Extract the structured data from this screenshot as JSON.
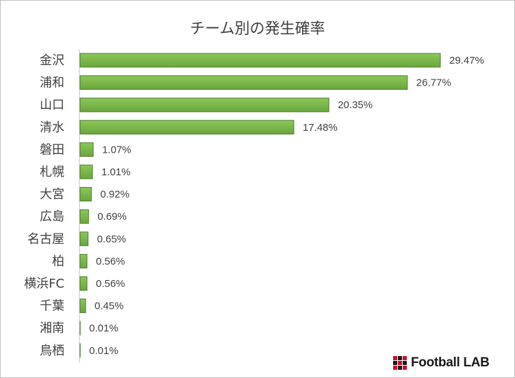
{
  "chart_data": {
    "type": "bar",
    "orientation": "horizontal",
    "title": "チーム別の発生確率",
    "categories": [
      "金沢",
      "浦和",
      "山口",
      "清水",
      "磐田",
      "札幌",
      "大宮",
      "広島",
      "名古屋",
      "柏",
      "横浜FC",
      "千葉",
      "湘南",
      "鳥栖"
    ],
    "values": [
      29.47,
      26.77,
      20.35,
      17.48,
      1.07,
      1.01,
      0.92,
      0.69,
      0.65,
      0.56,
      0.56,
      0.45,
      0.01,
      0.01
    ],
    "labels": [
      "29.47%",
      "26.77%",
      "20.35%",
      "17.48%",
      "1.07%",
      "1.01%",
      "0.92%",
      "0.69%",
      "0.65%",
      "0.56%",
      "0.56%",
      "0.45%",
      "0.01%",
      "0.01%"
    ],
    "xlim": [
      0,
      29.47
    ],
    "grid": false,
    "legend": "none",
    "colors": {
      "bar": "#7ab648",
      "bar_edge": "#4e7a2c",
      "label": "#404040",
      "axis": "#bfbfbf"
    }
  },
  "logo": {
    "text": "Football LAB"
  }
}
